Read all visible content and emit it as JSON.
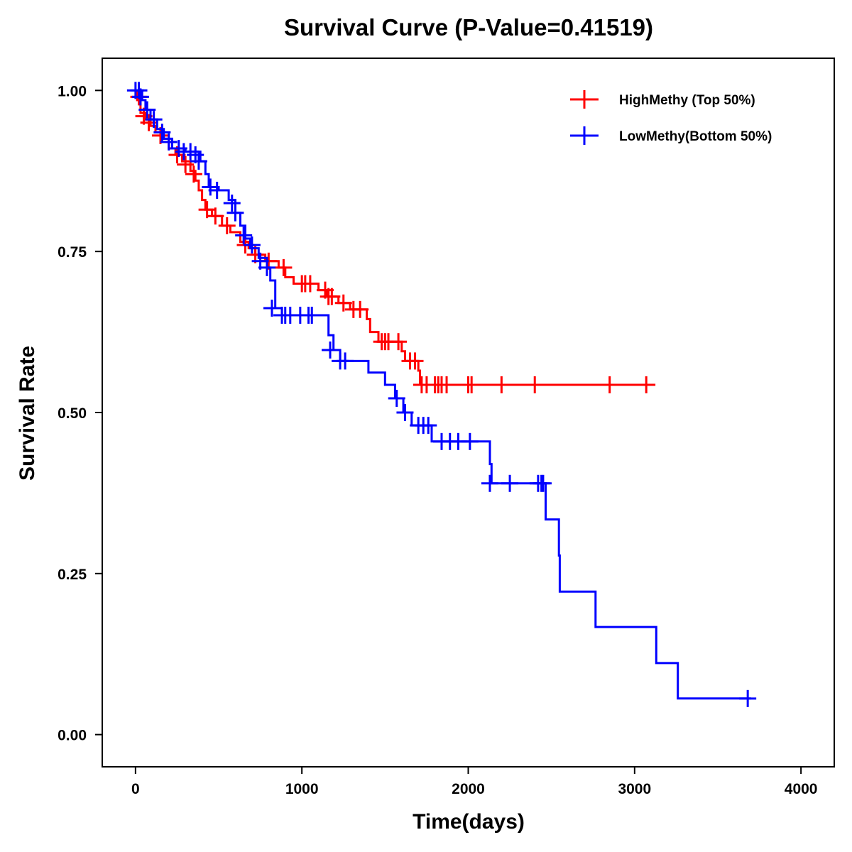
{
  "chart_data": {
    "type": "line",
    "subtype": "kaplan-meier-step",
    "title": "Survival Curve (P-Value=0.41519)",
    "xlabel": "Time(days)",
    "ylabel": "Survival Rate",
    "xlim": [
      -200,
      4200
    ],
    "ylim": [
      -0.05,
      1.05
    ],
    "xticks": [
      0,
      1000,
      2000,
      3000,
      4000
    ],
    "xtick_labels": [
      "0",
      "1000",
      "2000",
      "3000",
      "4000"
    ],
    "yticks": [
      0.0,
      0.25,
      0.5,
      0.75,
      1.0
    ],
    "ytick_labels": [
      "0.00",
      "0.25",
      "0.50",
      "0.75",
      "1.00"
    ],
    "grid": false,
    "legend_position": "top-right",
    "p_value": 0.41519,
    "series": [
      {
        "name": "HighMethy (Top 50%)",
        "color": "#ff0000",
        "steps": [
          [
            0,
            1.0
          ],
          [
            10,
            0.985
          ],
          [
            30,
            0.965
          ],
          [
            60,
            0.955
          ],
          [
            90,
            0.945
          ],
          [
            120,
            0.935
          ],
          [
            160,
            0.925
          ],
          [
            200,
            0.91
          ],
          [
            240,
            0.9
          ],
          [
            280,
            0.89
          ],
          [
            330,
            0.875
          ],
          [
            360,
            0.86
          ],
          [
            380,
            0.845
          ],
          [
            400,
            0.83
          ],
          [
            420,
            0.815
          ],
          [
            460,
            0.805
          ],
          [
            520,
            0.79
          ],
          [
            570,
            0.78
          ],
          [
            630,
            0.765
          ],
          [
            680,
            0.755
          ],
          [
            720,
            0.745
          ],
          [
            780,
            0.735
          ],
          [
            860,
            0.725
          ],
          [
            900,
            0.71
          ],
          [
            950,
            0.7
          ],
          [
            1100,
            0.69
          ],
          [
            1150,
            0.68
          ],
          [
            1220,
            0.67
          ],
          [
            1290,
            0.66
          ],
          [
            1390,
            0.645
          ],
          [
            1410,
            0.625
          ],
          [
            1460,
            0.61
          ],
          [
            1600,
            0.595
          ],
          [
            1620,
            0.58
          ],
          [
            1700,
            0.565
          ],
          [
            1710,
            0.543
          ],
          [
            3125,
            0.543
          ]
        ],
        "censored": [
          [
            20,
            0.99
          ],
          [
            50,
            0.96
          ],
          [
            80,
            0.95
          ],
          [
            150,
            0.93
          ],
          [
            250,
            0.9
          ],
          [
            300,
            0.885
          ],
          [
            350,
            0.87
          ],
          [
            430,
            0.815
          ],
          [
            480,
            0.805
          ],
          [
            550,
            0.79
          ],
          [
            660,
            0.76
          ],
          [
            720,
            0.745
          ],
          [
            800,
            0.735
          ],
          [
            890,
            0.725
          ],
          [
            1000,
            0.7
          ],
          [
            1020,
            0.7
          ],
          [
            1050,
            0.7
          ],
          [
            1140,
            0.69
          ],
          [
            1160,
            0.68
          ],
          [
            1180,
            0.68
          ],
          [
            1250,
            0.67
          ],
          [
            1310,
            0.66
          ],
          [
            1350,
            0.66
          ],
          [
            1480,
            0.61
          ],
          [
            1500,
            0.61
          ],
          [
            1520,
            0.61
          ],
          [
            1580,
            0.61
          ],
          [
            1650,
            0.58
          ],
          [
            1680,
            0.58
          ],
          [
            1720,
            0.543
          ],
          [
            1750,
            0.543
          ],
          [
            1800,
            0.543
          ],
          [
            1820,
            0.543
          ],
          [
            1840,
            0.543
          ],
          [
            1870,
            0.543
          ],
          [
            2000,
            0.543
          ],
          [
            2020,
            0.543
          ],
          [
            2200,
            0.543
          ],
          [
            2400,
            0.543
          ],
          [
            2850,
            0.543
          ],
          [
            3070,
            0.543
          ]
        ]
      },
      {
        "name": "LowMethy(Bottom 50%)",
        "color": "#0000ff",
        "steps": [
          [
            0,
            1.0
          ],
          [
            40,
            0.985
          ],
          [
            60,
            0.97
          ],
          [
            90,
            0.955
          ],
          [
            130,
            0.94
          ],
          [
            170,
            0.925
          ],
          [
            220,
            0.91
          ],
          [
            300,
            0.905
          ],
          [
            390,
            0.89
          ],
          [
            420,
            0.87
          ],
          [
            440,
            0.85
          ],
          [
            500,
            0.845
          ],
          [
            560,
            0.83
          ],
          [
            600,
            0.81
          ],
          [
            630,
            0.79
          ],
          [
            660,
            0.77
          ],
          [
            690,
            0.755
          ],
          [
            740,
            0.74
          ],
          [
            790,
            0.725
          ],
          [
            810,
            0.705
          ],
          [
            840,
            0.685
          ],
          [
            840,
            0.662
          ],
          [
            880,
            0.651
          ],
          [
            1140,
            0.651
          ],
          [
            1160,
            0.62
          ],
          [
            1190,
            0.597
          ],
          [
            1230,
            0.58
          ],
          [
            1400,
            0.562
          ],
          [
            1500,
            0.543
          ],
          [
            1560,
            0.522
          ],
          [
            1610,
            0.5
          ],
          [
            1660,
            0.48
          ],
          [
            1780,
            0.455
          ],
          [
            2120,
            0.455
          ],
          [
            2130,
            0.42
          ],
          [
            2140,
            0.39
          ],
          [
            2460,
            0.39
          ],
          [
            2465,
            0.334
          ],
          [
            2540,
            0.334
          ],
          [
            2545,
            0.278
          ],
          [
            2550,
            0.222
          ],
          [
            2760,
            0.222
          ],
          [
            2765,
            0.167
          ],
          [
            3125,
            0.167
          ],
          [
            3130,
            0.111
          ],
          [
            3255,
            0.111
          ],
          [
            3260,
            0.056
          ],
          [
            3700,
            0.056
          ]
        ],
        "censored": [
          [
            0,
            1.0
          ],
          [
            20,
            1.0
          ],
          [
            30,
            0.99
          ],
          [
            70,
            0.97
          ],
          [
            110,
            0.955
          ],
          [
            160,
            0.935
          ],
          [
            200,
            0.92
          ],
          [
            260,
            0.91
          ],
          [
            290,
            0.905
          ],
          [
            330,
            0.905
          ],
          [
            360,
            0.9
          ],
          [
            380,
            0.89
          ],
          [
            450,
            0.85
          ],
          [
            490,
            0.845
          ],
          [
            580,
            0.825
          ],
          [
            600,
            0.81
          ],
          [
            650,
            0.775
          ],
          [
            700,
            0.76
          ],
          [
            750,
            0.735
          ],
          [
            790,
            0.725
          ],
          [
            820,
            0.662
          ],
          [
            880,
            0.651
          ],
          [
            900,
            0.651
          ],
          [
            930,
            0.651
          ],
          [
            990,
            0.651
          ],
          [
            1040,
            0.651
          ],
          [
            1060,
            0.651
          ],
          [
            1170,
            0.597
          ],
          [
            1230,
            0.58
          ],
          [
            1260,
            0.58
          ],
          [
            1570,
            0.522
          ],
          [
            1620,
            0.5
          ],
          [
            1700,
            0.48
          ],
          [
            1730,
            0.48
          ],
          [
            1760,
            0.48
          ],
          [
            1840,
            0.455
          ],
          [
            1890,
            0.455
          ],
          [
            1940,
            0.455
          ],
          [
            2010,
            0.455
          ],
          [
            2130,
            0.39
          ],
          [
            2250,
            0.39
          ],
          [
            2420,
            0.39
          ],
          [
            2440,
            0.39
          ],
          [
            2450,
            0.39
          ],
          [
            3680,
            0.056
          ]
        ]
      }
    ]
  }
}
